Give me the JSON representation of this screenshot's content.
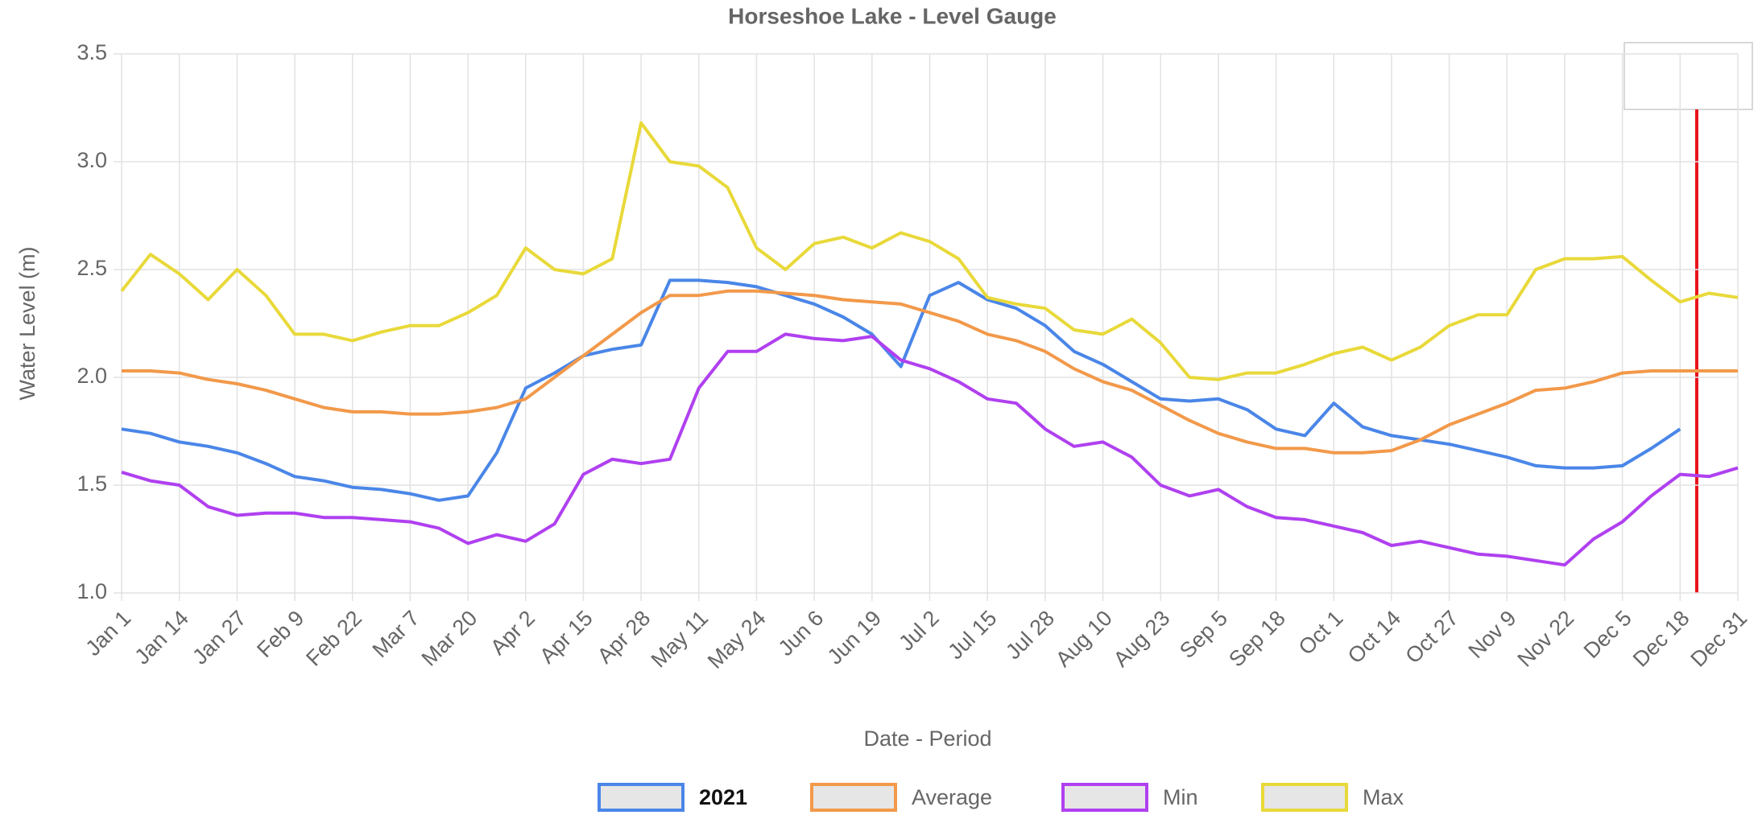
{
  "chart_data": {
    "type": "line",
    "title": "Horseshoe Lake - Level Gauge",
    "x_label": "Date - Period",
    "y_label": "Water Level (m)",
    "categories": [
      "Jan 1",
      null,
      "Jan 14",
      null,
      "Jan 27",
      null,
      "Feb 9",
      null,
      "Feb 22",
      null,
      "Mar 7",
      null,
      "Mar 20",
      null,
      "Apr 2",
      null,
      "Apr 15",
      null,
      "Apr 28",
      null,
      "May 11",
      null,
      "May 24",
      null,
      "Jun 6",
      null,
      "Jun 19",
      null,
      "Jul 2",
      null,
      "Jul 15",
      null,
      "Jul 28",
      null,
      "Aug 10",
      null,
      "Aug 23",
      null,
      "Sep 5",
      null,
      "Sep 18",
      null,
      "Oct 1",
      null,
      "Oct 14",
      null,
      "Oct 27",
      null,
      "Nov 9",
      null,
      "Nov 22",
      null,
      "Dec 5",
      null,
      "Dec 18",
      null,
      "Dec 31"
    ],
    "ylim": [
      1,
      3.5
    ],
    "yticks": [
      {
        "value": 1,
        "label": "1.0"
      },
      1.5,
      {
        "value": 2,
        "label": "2.0"
      },
      2.5,
      {
        "value": 3,
        "label": "3.0"
      },
      3.5
    ],
    "grid": true,
    "legend": "bottom",
    "series": [
      {
        "name": "2021",
        "color": "#4a86e8",
        "values": [
          1.76,
          1.74,
          1.7,
          1.68,
          1.65,
          1.6,
          1.54,
          1.52,
          1.49,
          1.48,
          1.46,
          1.43,
          1.45,
          1.65,
          1.95,
          2.02,
          2.1,
          2.13,
          2.15,
          2.45,
          2.45,
          2.44,
          2.42,
          2.38,
          2.34,
          2.28,
          2.2,
          2.05,
          2.38,
          2.44,
          2.36,
          2.32,
          2.24,
          2.12,
          2.06,
          1.98,
          1.9,
          1.89,
          1.9,
          1.85,
          1.76,
          1.73,
          1.88,
          1.77,
          1.73,
          1.71,
          1.69,
          1.66,
          1.63,
          1.59,
          1.58,
          1.58,
          1.59,
          1.67,
          1.76,
          null,
          null
        ]
      },
      {
        "name": "Average",
        "color": "#f2994a",
        "values": [
          2.03,
          2.03,
          2.02,
          1.99,
          1.97,
          1.94,
          1.9,
          1.86,
          1.84,
          1.84,
          1.83,
          1.83,
          1.84,
          1.86,
          1.9,
          2.0,
          2.1,
          2.2,
          2.3,
          2.38,
          2.38,
          2.4,
          2.4,
          2.39,
          2.38,
          2.36,
          2.35,
          2.34,
          2.3,
          2.26,
          2.2,
          2.17,
          2.12,
          2.04,
          1.98,
          1.94,
          1.87,
          1.8,
          1.74,
          1.7,
          1.67,
          1.67,
          1.65,
          1.65,
          1.66,
          1.71,
          1.78,
          1.83,
          1.88,
          1.94,
          1.95,
          1.98,
          2.02,
          2.03,
          2.03,
          2.03,
          2.03
        ]
      },
      {
        "name": "Min",
        "color": "#b040f0",
        "values": [
          1.56,
          1.52,
          1.5,
          1.4,
          1.36,
          1.37,
          1.37,
          1.35,
          1.35,
          1.34,
          1.33,
          1.3,
          1.23,
          1.27,
          1.24,
          1.32,
          1.55,
          1.62,
          1.6,
          1.62,
          1.95,
          2.12,
          2.12,
          2.2,
          2.18,
          2.17,
          2.19,
          2.08,
          2.04,
          1.98,
          1.9,
          1.88,
          1.76,
          1.68,
          1.7,
          1.63,
          1.5,
          1.45,
          1.48,
          1.4,
          1.35,
          1.34,
          1.31,
          1.28,
          1.22,
          1.24,
          1.21,
          1.18,
          1.17,
          1.15,
          1.13,
          1.25,
          1.33,
          1.45,
          1.55,
          1.54,
          1.58
        ]
      },
      {
        "name": "Max",
        "color": "#e8d93a",
        "values": [
          2.4,
          2.57,
          2.48,
          2.36,
          2.5,
          2.38,
          2.2,
          2.2,
          2.17,
          2.21,
          2.24,
          2.24,
          2.3,
          2.38,
          2.6,
          2.5,
          2.48,
          2.55,
          3.18,
          3.0,
          2.98,
          2.88,
          2.6,
          2.5,
          2.62,
          2.65,
          2.6,
          2.67,
          2.63,
          2.55,
          2.37,
          2.34,
          2.32,
          2.22,
          2.2,
          2.27,
          2.16,
          2.0,
          1.99,
          2.02,
          2.02,
          2.06,
          2.11,
          2.14,
          2.08,
          2.14,
          2.24,
          2.29,
          2.29,
          2.5,
          2.55,
          2.55,
          2.56,
          2.45,
          2.35,
          2.39,
          2.37
        ]
      }
    ]
  }
}
